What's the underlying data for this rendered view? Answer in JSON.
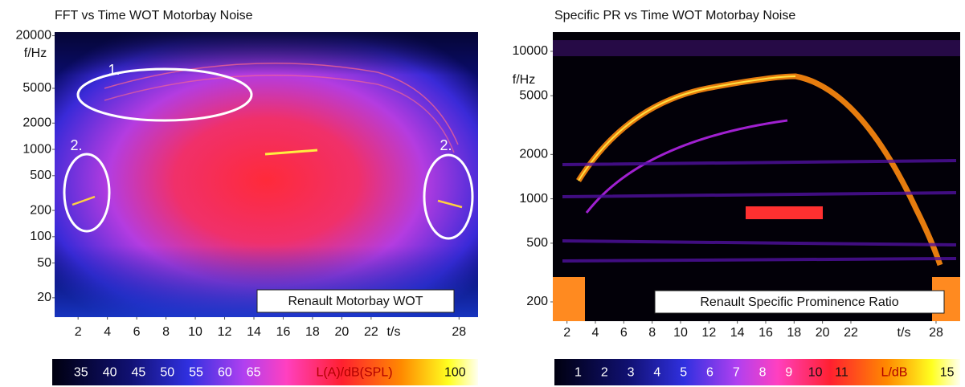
{
  "chart_data": [
    {
      "type": "spectrogram",
      "title": "FFT vs Time WOT Motorbay Noise",
      "y_label": "f/Hz",
      "x_label": "t/s",
      "label": "Renault Motorbay WOT",
      "annotations": [
        "1.",
        "2.",
        "2."
      ],
      "y_log": true,
      "xlim": [
        0.4,
        29.3
      ],
      "ylim": [
        12,
        22000
      ],
      "xticks": [
        2,
        4,
        6,
        8,
        10,
        12,
        14,
        16,
        18,
        20,
        22,
        28
      ],
      "yticks": [
        20,
        50,
        100,
        200,
        500,
        1000,
        2000,
        5000,
        20000
      ],
      "colorbar": {
        "label": "L(A)/dB(SPL)",
        "clim": [
          30,
          104
        ],
        "ticks": [
          35,
          40,
          45,
          50,
          55,
          60,
          65,
          100
        ]
      }
    },
    {
      "type": "spectrogram",
      "title": "Specific PR vs Time WOT Motorbay Noise",
      "y_label": "f/Hz",
      "x_label": "t/s",
      "label": "Renault Specific Prominence Ratio",
      "annotations": [],
      "y_log": true,
      "xlim": [
        1,
        29.7
      ],
      "ylim": [
        148,
        13500
      ],
      "xticks": [
        2,
        4,
        6,
        8,
        10,
        12,
        14,
        16,
        18,
        20,
        22,
        28
      ],
      "yticks": [
        200,
        500,
        1000,
        2000,
        5000,
        10000
      ],
      "colorbar": {
        "label": "L/dB",
        "clim": [
          0.1,
          15.5
        ],
        "ticks": [
          1,
          2,
          3,
          4,
          5,
          6,
          7,
          8,
          9,
          10,
          11,
          15
        ]
      }
    }
  ]
}
